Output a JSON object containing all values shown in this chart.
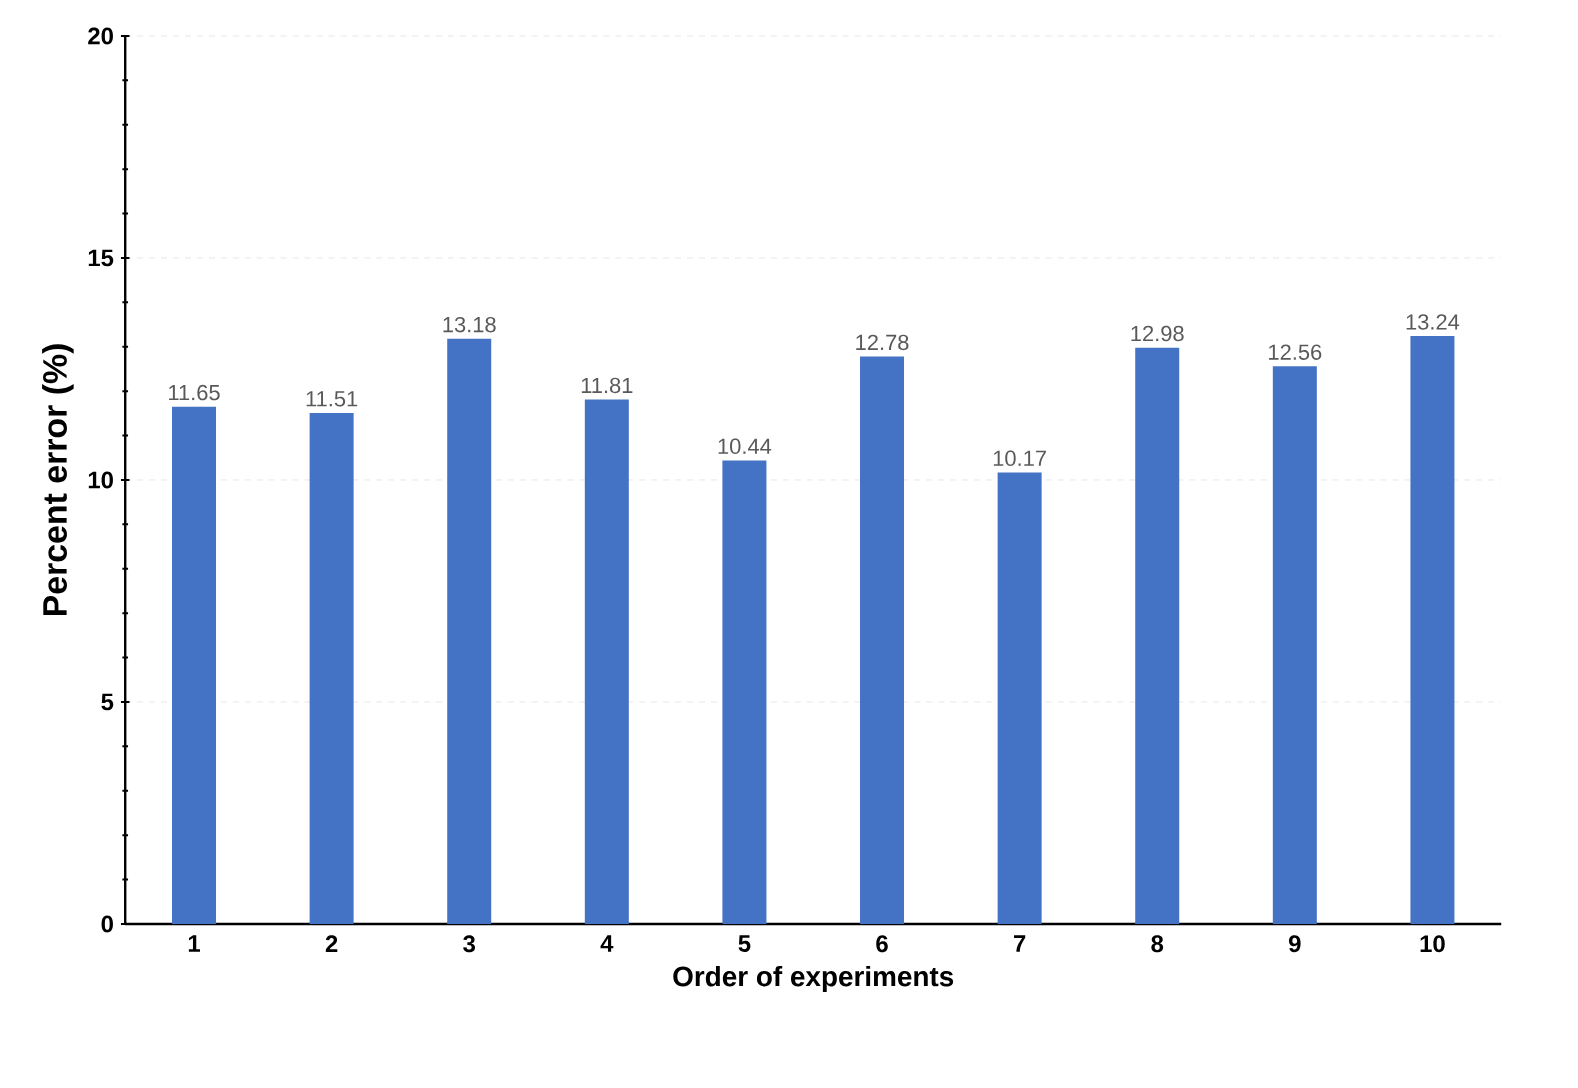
{
  "chart_data": {
    "type": "bar",
    "xlabel": "Order of experiments",
    "ylabel": "Percent error (%)",
    "categories": [
      "1",
      "2",
      "3",
      "4",
      "5",
      "6",
      "7",
      "8",
      "9",
      "10"
    ],
    "values": [
      11.65,
      11.51,
      13.18,
      11.81,
      10.44,
      12.78,
      10.17,
      12.98,
      12.56,
      13.24
    ],
    "color": "#4472c4",
    "ylim": [
      0,
      20
    ],
    "yticks": [
      0,
      5,
      10,
      15,
      20
    ],
    "grid": "y",
    "data_labels": true
  }
}
